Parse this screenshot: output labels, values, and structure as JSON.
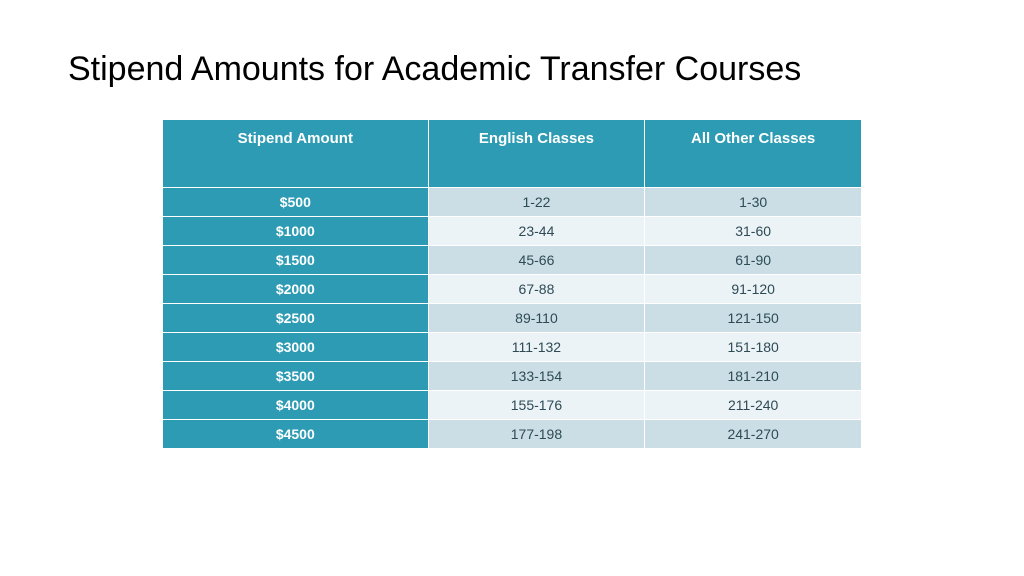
{
  "title": "Stipend Amounts for Academic Transfer Courses",
  "table": {
    "type": "table",
    "header_bg": "#2d9bb3",
    "header_fg": "#ffffff",
    "amount_col_bg": "#2d9bb3",
    "amount_col_fg": "#ffffff",
    "row_even_bg": "#cbdee5",
    "row_odd_bg": "#ecf3f6",
    "data_fg": "#2d4a55",
    "border_color": "#ffffff",
    "header_fontsize": 15,
    "cell_fontsize": 14,
    "col_widths_pct": [
      38,
      31,
      31
    ],
    "columns": [
      "Stipend Amount",
      "English Classes",
      "All Other Classes"
    ],
    "rows": [
      [
        "$500",
        "1-22",
        "1-30"
      ],
      [
        "$1000",
        "23-44",
        "31-60"
      ],
      [
        "$1500",
        "45-66",
        "61-90"
      ],
      [
        "$2000",
        "67-88",
        "91-120"
      ],
      [
        "$2500",
        "89-110",
        "121-150"
      ],
      [
        "$3000",
        "111-132",
        "151-180"
      ],
      [
        "$3500",
        "133-154",
        "181-210"
      ],
      [
        "$4000",
        "155-176",
        "211-240"
      ],
      [
        "$4500",
        "177-198",
        "241-270"
      ]
    ]
  }
}
